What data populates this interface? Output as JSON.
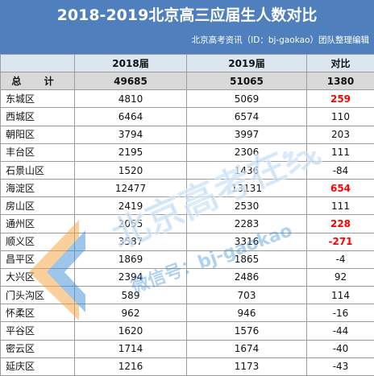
{
  "header": {
    "title": "2018-2019北京高三应届生人数对比",
    "source": "北京高考资讯（ID：bj-gaokao）团队整理编辑",
    "background": "#4f80bd"
  },
  "table": {
    "columns": [
      "",
      "2018届",
      "2019届",
      "对比"
    ],
    "total": {
      "label": "总 计",
      "y2018": "49685",
      "y2019": "51065",
      "diff": "1380"
    },
    "rows": [
      {
        "name": "东城区",
        "y2018": "4810",
        "y2019": "5069",
        "diff": "259",
        "highlight": true
      },
      {
        "name": "西城区",
        "y2018": "6464",
        "y2019": "6574",
        "diff": "110",
        "highlight": false
      },
      {
        "name": "朝阳区",
        "y2018": "3794",
        "y2019": "3997",
        "diff": "203",
        "highlight": false
      },
      {
        "name": "丰台区",
        "y2018": "2195",
        "y2019": "2306",
        "diff": "111",
        "highlight": false
      },
      {
        "name": "石景山区",
        "y2018": "1520",
        "y2019": "1436",
        "diff": "-84",
        "highlight": false
      },
      {
        "name": "海淀区",
        "y2018": "12477",
        "y2019": "13131",
        "diff": "654",
        "highlight": true
      },
      {
        "name": "房山区",
        "y2018": "2419",
        "y2019": "2530",
        "diff": "111",
        "highlight": false
      },
      {
        "name": "通州区",
        "y2018": "2055",
        "y2019": "2283",
        "diff": "228",
        "highlight": true
      },
      {
        "name": "顺义区",
        "y2018": "3587",
        "y2019": "3316",
        "diff": "-271",
        "highlight": true
      },
      {
        "name": "昌平区",
        "y2018": "1869",
        "y2019": "1865",
        "diff": "-4",
        "highlight": false
      },
      {
        "name": "大兴区",
        "y2018": "2394",
        "y2019": "2486",
        "diff": "92",
        "highlight": false
      },
      {
        "name": "门头沟区",
        "y2018": "589",
        "y2019": "703",
        "diff": "114",
        "highlight": false
      },
      {
        "name": "怀柔区",
        "y2018": "962",
        "y2019": "946",
        "diff": "-16",
        "highlight": false
      },
      {
        "name": "平谷区",
        "y2018": "1620",
        "y2019": "1576",
        "diff": "-44",
        "highlight": false
      },
      {
        "name": "密云区",
        "y2018": "1714",
        "y2019": "1674",
        "diff": "-40",
        "highlight": false
      },
      {
        "name": "延庆区",
        "y2018": "1216",
        "y2019": "1173",
        "diff": "-43",
        "highlight": false
      }
    ]
  },
  "watermark": {
    "brand": "北京高考在线",
    "wechat": "微信号：bj-gaokao"
  },
  "colors": {
    "highlight": "#ff0000",
    "header_row": "#dce6f1",
    "total_row": "#d9d9d9"
  }
}
